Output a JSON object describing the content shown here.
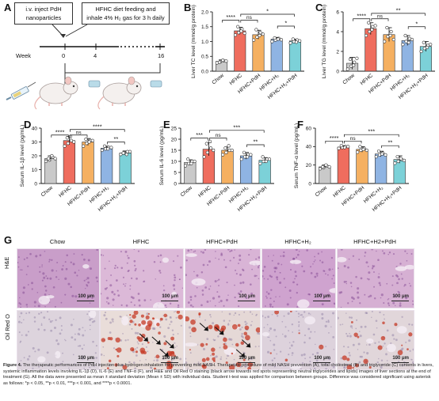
{
  "panel_labels": {
    "a": "A",
    "b": "B",
    "c": "C",
    "d": "D",
    "e": "E",
    "f": "F",
    "g": "G"
  },
  "schematic": {
    "box1_line1": "i.v. inject PdH",
    "box1_line2": "nanoparticles",
    "box2_line1": "HFHC diet feeding and",
    "box2_line2": "inhale 4% H₂ gas for 3 h daily",
    "week_label": "Week",
    "ticks": [
      "0",
      "4",
      "16"
    ]
  },
  "colors": {
    "chow": "#c9c9c9",
    "hfhc": "#ef6d5e",
    "hfhc_pdh": "#f5b061",
    "hfhc_h2": "#8fb4e3",
    "hfhc_h2_pdh": "#7cd1d8"
  },
  "significance_labels": [
    "****",
    "ns",
    "*",
    "**",
    "***"
  ],
  "chart_data": [
    {
      "id": "B",
      "type": "bar",
      "ylabel": "Liver TC level (mmol/g protein)",
      "ylim": [
        0,
        2.0
      ],
      "yticks": [
        "0.0",
        "0.5",
        "1.0",
        "1.5",
        "2.0"
      ],
      "categories": [
        "Chow",
        "HFHC",
        "HFHC+PdH",
        "HFHC+H₂",
        "HFHC+H₂+PdH"
      ],
      "values": [
        0.33,
        1.36,
        1.23,
        1.08,
        1.02
      ],
      "errors": [
        0.05,
        0.12,
        0.15,
        0.06,
        0.06
      ],
      "points": [
        [
          0.28,
          0.32,
          0.35,
          0.3,
          0.37,
          0.34
        ],
        [
          1.22,
          1.3,
          1.42,
          1.5,
          1.35,
          1.28
        ],
        [
          1.05,
          1.15,
          1.3,
          1.4,
          1.2,
          1.25
        ],
        [
          1.0,
          1.05,
          1.1,
          1.12,
          1.08,
          1.06
        ],
        [
          0.95,
          1.0,
          1.05,
          1.08,
          0.98,
          1.02
        ]
      ],
      "brackets": [
        {
          "from": 0,
          "to": 1,
          "label": "****",
          "y": 1.72
        },
        {
          "from": 1,
          "to": 2,
          "label": "ns",
          "y": 1.72
        },
        {
          "from": 1,
          "to": 4,
          "label": "*",
          "y": 1.92
        },
        {
          "from": 3,
          "to": 4,
          "label": "*",
          "y": 1.52
        }
      ]
    },
    {
      "id": "C",
      "type": "bar",
      "ylabel": "Liver TG level (mmol/g protein)",
      "ylim": [
        0,
        6
      ],
      "yticks": [
        "0",
        "2",
        "4",
        "6"
      ],
      "categories": [
        "Chow",
        "HFHC",
        "HFHC+PdH",
        "HFHC+H₂",
        "HFHC+H₂+PdH"
      ],
      "values": [
        0.8,
        4.3,
        3.7,
        3.1,
        2.5
      ],
      "errors": [
        0.6,
        0.6,
        0.7,
        0.5,
        0.5
      ],
      "points": [
        [
          0.2,
          0.5,
          0.9,
          1.2,
          0.6,
          1.3
        ],
        [
          3.6,
          4.0,
          4.5,
          4.9,
          4.2,
          4.6
        ],
        [
          3.0,
          3.5,
          4.0,
          4.4,
          3.6,
          3.2
        ],
        [
          2.7,
          3.0,
          3.3,
          3.6,
          2.9,
          3.2
        ],
        [
          2.0,
          2.3,
          2.6,
          2.9,
          2.4,
          2.7
        ]
      ],
      "brackets": [
        {
          "from": 0,
          "to": 1,
          "label": "****",
          "y": 5.3
        },
        {
          "from": 1,
          "to": 2,
          "label": "ns",
          "y": 5.3
        },
        {
          "from": 1,
          "to": 4,
          "label": "**",
          "y": 5.85
        },
        {
          "from": 3,
          "to": 4,
          "label": "*",
          "y": 4.5
        }
      ]
    },
    {
      "id": "D",
      "type": "bar",
      "ylabel": "Serum IL-1β level (pg/mL)",
      "ylim": [
        0,
        40
      ],
      "yticks": [
        "0",
        "10",
        "20",
        "30",
        "40"
      ],
      "categories": [
        "Chow",
        "HFHC",
        "HFHC+PdH",
        "HFHC+H₂",
        "HFHC+H₂+PdH"
      ],
      "values": [
        18,
        31,
        30,
        25.5,
        22
      ],
      "errors": [
        2,
        3,
        2.5,
        1.5,
        1.5
      ],
      "points": [
        [
          16,
          17,
          19,
          18,
          20,
          18
        ],
        [
          27,
          29,
          31,
          33,
          34,
          30
        ],
        [
          27,
          29,
          31,
          32,
          30,
          31
        ],
        [
          24,
          25,
          26,
          27,
          25,
          26
        ],
        [
          21,
          22,
          23,
          22,
          21,
          23
        ]
      ],
      "brackets": [
        {
          "from": 0,
          "to": 1,
          "label": "****",
          "y": 35
        },
        {
          "from": 1,
          "to": 2,
          "label": "ns",
          "y": 35
        },
        {
          "from": 1,
          "to": 4,
          "label": "****",
          "y": 39
        },
        {
          "from": 3,
          "to": 4,
          "label": "**",
          "y": 30
        }
      ]
    },
    {
      "id": "E",
      "type": "bar",
      "ylabel": "Serum IL-6 level (pg/mL)",
      "ylim": [
        0,
        25
      ],
      "yticks": [
        "0",
        "5",
        "10",
        "15",
        "20",
        "25"
      ],
      "categories": [
        "Chow",
        "HFHC",
        "HFHC+PdH",
        "HFHC+H₂",
        "HFHC+H₂+PdH"
      ],
      "values": [
        9.5,
        15.5,
        15,
        12.5,
        10.5
      ],
      "errors": [
        1.2,
        3,
        1.5,
        1.5,
        1.2
      ],
      "points": [
        [
          8,
          9,
          10,
          11,
          9,
          10
        ],
        [
          12,
          14,
          16,
          18,
          19,
          15
        ],
        [
          13,
          14,
          15,
          16,
          17,
          15
        ],
        [
          11,
          12,
          13,
          14,
          12,
          13
        ],
        [
          9,
          10,
          11,
          12,
          10,
          11
        ]
      ],
      "brackets": [
        {
          "from": 0,
          "to": 1,
          "label": "***",
          "y": 20.5
        },
        {
          "from": 1,
          "to": 2,
          "label": "ns",
          "y": 20.5
        },
        {
          "from": 1,
          "to": 4,
          "label": "***",
          "y": 24
        },
        {
          "from": 3,
          "to": 4,
          "label": "**",
          "y": 17.5
        }
      ]
    },
    {
      "id": "F",
      "type": "bar",
      "ylabel": "Serum TNF-α level (pg/mL)",
      "ylim": [
        0,
        60
      ],
      "yticks": [
        "0",
        "20",
        "40",
        "60"
      ],
      "categories": [
        "Chow",
        "HFHC",
        "HFHC+PdH",
        "HFHC+H₂",
        "HFHC+H₂+PdH"
      ],
      "values": [
        18,
        39.5,
        37,
        32,
        26
      ],
      "errors": [
        2,
        1.5,
        3,
        3,
        4
      ],
      "points": [
        [
          16,
          17,
          19,
          18,
          20,
          18
        ],
        [
          38,
          39,
          40,
          41,
          39,
          40
        ],
        [
          34,
          36,
          38,
          40,
          37,
          36
        ],
        [
          29,
          31,
          33,
          35,
          32,
          31
        ],
        [
          22,
          24,
          26,
          29,
          27,
          25
        ]
      ],
      "brackets": [
        {
          "from": 0,
          "to": 1,
          "label": "****",
          "y": 46
        },
        {
          "from": 1,
          "to": 2,
          "label": "ns",
          "y": 46
        },
        {
          "from": 1,
          "to": 4,
          "label": "***",
          "y": 53
        },
        {
          "from": 3,
          "to": 4,
          "label": "**",
          "y": 41
        }
      ]
    }
  ],
  "histology": {
    "columns": [
      "Chow",
      "HFHC",
      "HFHC+PdH",
      "HFHC+H₂",
      "HFHC+H2+PdH"
    ],
    "rows": [
      "H&E",
      "Oil Red O"
    ],
    "scale_label": "100 μm"
  },
  "caption": {
    "title": "Figure 4.",
    "body": "The therapeutic performances of PdH injection plus hydrogen inhalation for preventing mild NASH. Therapeutic procedure of mild NASH prevention (A), total cholesterol (B) and triglyceride (C) contents in livers, systemic inflammation levels involving IL-1β (D), IL-6 (E) and TNF-α (F), and H&E and Oil Red O staining (black arrow towards red spots representing neutral triglycerides and lipids) images of liver sections at the end of treatment (G). All the data were presented as mean ± standard deviation (Mean ± SD) with individual data. Student t-test was applied for comparison between groups. Difference was considered significant using asterisk as follows: *p < 0.05, **p < 0.01, ***p < 0.001, and ****p < 0.0001."
  }
}
